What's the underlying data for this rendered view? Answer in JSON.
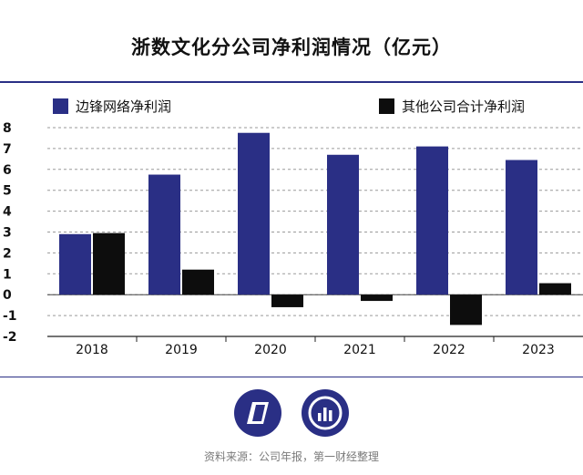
{
  "chart_data": {
    "type": "bar",
    "title": "浙数文化分公司净利润情况（亿元）",
    "categories": [
      "2018",
      "2019",
      "2020",
      "2021",
      "2022",
      "2023"
    ],
    "series": [
      {
        "name": "边锋网络净利润",
        "color": "#2a2f85",
        "values": [
          2.9,
          5.75,
          7.75,
          6.7,
          7.1,
          6.45
        ]
      },
      {
        "name": "其他公司合计净利润",
        "color": "#0d0d0d",
        "values": [
          2.95,
          1.2,
          -0.6,
          -0.3,
          -1.45,
          0.55
        ]
      }
    ],
    "yticks": [
      "8",
      "7",
      "6",
      "5",
      "4",
      "3",
      "2",
      "1",
      "0",
      "-1",
      "-2"
    ],
    "ylim": [
      -2,
      8
    ],
    "grid": true,
    "legend": "top"
  },
  "footer": {
    "source": "资料来源：公司年报，第一财经整理",
    "logo1": "logo-parallelogram",
    "logo2": "logo-bar-chart"
  }
}
